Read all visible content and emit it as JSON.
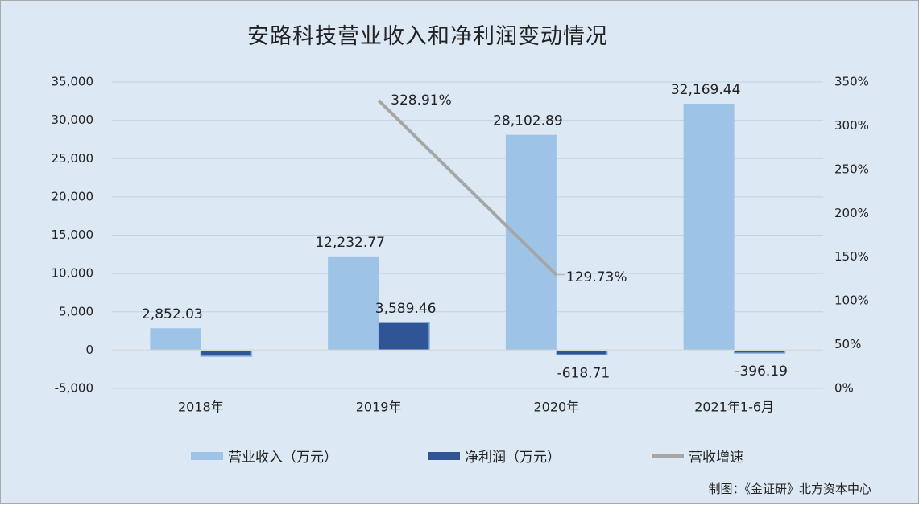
{
  "chart_data": {
    "type": "bar",
    "title": "安路科技营业收入和净利润变动情况",
    "categories": [
      "2018年",
      "2019年",
      "2020年",
      "2021年1-6月"
    ],
    "series": [
      {
        "name": "营业收入（万元）",
        "type": "bar",
        "axis": "left",
        "color": "#9dc3e6",
        "values": [
          2852.03,
          12232.77,
          28102.89,
          32169.44
        ],
        "labels": [
          "2,852.03",
          "12,232.77",
          "28,102.89",
          "32,169.44"
        ]
      },
      {
        "name": "净利润（万元）",
        "type": "bar",
        "axis": "left",
        "color": "#2f5597",
        "values": [
          -800,
          3589.46,
          -618.71,
          -396.19
        ],
        "labels": [
          "",
          "3,589.46",
          "-618.71",
          "-396.19"
        ]
      },
      {
        "name": "营收增速",
        "type": "line",
        "axis": "right",
        "color": "#a6a6a6",
        "values": [
          null,
          328.91,
          129.73,
          null
        ],
        "labels": [
          "",
          "328.91%",
          "129.73%",
          ""
        ]
      }
    ],
    "y_left": {
      "min": -5000,
      "max": 35000,
      "step": 5000,
      "tick_labels": [
        "-5,000",
        "0",
        "5,000",
        "10,000",
        "15,000",
        "20,000",
        "25,000",
        "30,000",
        "35,000"
      ]
    },
    "y_right": {
      "min": 0,
      "max": 350,
      "step": 50,
      "tick_labels": [
        "0%",
        "50%",
        "100%",
        "150%",
        "200%",
        "250%",
        "300%",
        "350%"
      ]
    },
    "grid": true,
    "legend_position": "bottom"
  },
  "legend": [
    {
      "label": "营业收入（万元）",
      "color": "#9dc3e6",
      "kind": "bar"
    },
    {
      "label": "净利润（万元）",
      "color": "#2f5597",
      "kind": "bar"
    },
    {
      "label": "营收增速",
      "color": "#a6a6a6",
      "kind": "line"
    }
  ],
  "source": "制图：《金证研》北方资本中心"
}
